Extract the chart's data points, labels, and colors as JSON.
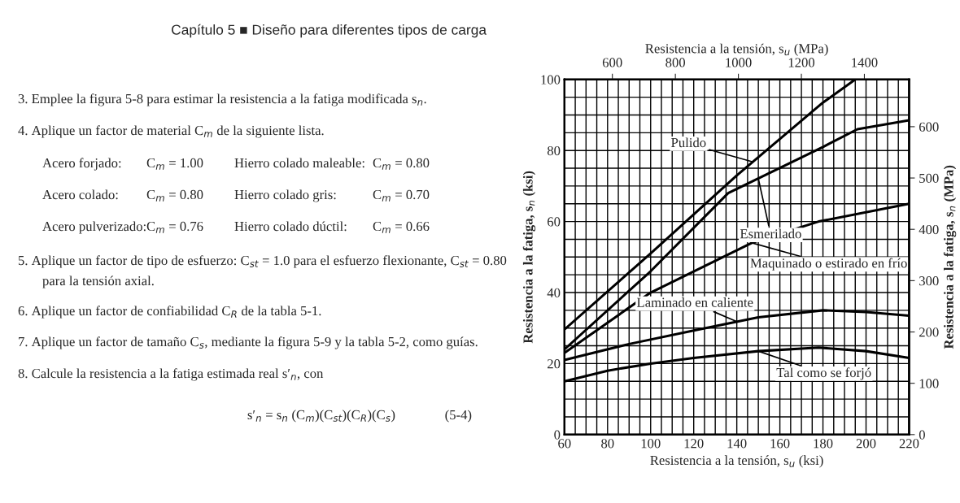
{
  "chart_data": {
    "type": "line",
    "xlabel": "Resistencia a la tensión, s$_{u}$ (ksi)",
    "x2label": "Resistencia a la tensión, s$_{u}$ (MPa)",
    "ylabel": "Resistencia a la fatiga, s$_{n}$ (ksi)",
    "y2label": "Resistencia a la fatiga, s$_{n}$ (MPa)",
    "xlim": [
      60,
      220
    ],
    "xticks": [
      60,
      {
        "value": 65,
        "label": null
      },
      {
        "value": 70,
        "label": null
      },
      {
        "value": 75,
        "label": null
      },
      80,
      {
        "value": 85,
        "label": null
      },
      {
        "value": 90,
        "label": null
      },
      {
        "value": 95,
        "label": null
      },
      100,
      {
        "value": 105,
        "label": null
      },
      {
        "value": 110,
        "label": null
      },
      {
        "value": 115,
        "label": null
      },
      120,
      {
        "value": 125,
        "label": null
      },
      {
        "value": 130,
        "label": null
      },
      {
        "value": 135,
        "label": null
      },
      140,
      {
        "value": 145,
        "label": null
      },
      {
        "value": 150,
        "label": null
      },
      {
        "value": 155,
        "label": null
      },
      160,
      {
        "value": 165,
        "label": null
      },
      {
        "value": 170,
        "label": null
      },
      {
        "value": 175,
        "label": null
      },
      180,
      {
        "value": 185,
        "label": null
      },
      {
        "value": 190,
        "label": null
      },
      {
        "value": 195,
        "label": null
      },
      200,
      {
        "value": 205,
        "label": null
      },
      {
        "value": 210,
        "label": null
      },
      {
        "value": 215,
        "label": null
      },
      220
    ],
    "ylim": [
      0,
      100
    ],
    "yticks": [
      0,
      {
        "value": 5,
        "label": null
      },
      {
        "value": 10,
        "label": null
      },
      {
        "value": 15,
        "label": null
      },
      20,
      {
        "value": 25,
        "label": null
      },
      {
        "value": 30,
        "label": null
      },
      {
        "value": 35,
        "label": null
      },
      40,
      {
        "value": 45,
        "label": null
      },
      {
        "value": 50,
        "label": null
      },
      {
        "value": 55,
        "label": null
      },
      60,
      {
        "value": 65,
        "label": null
      },
      {
        "value": 70,
        "label": null
      },
      {
        "value": 75,
        "label": null
      },
      80,
      {
        "value": 85,
        "label": null
      },
      {
        "value": 90,
        "label": null
      },
      {
        "value": 95,
        "label": null
      },
      100
    ],
    "x2lim": [
      448,
      1542
    ],
    "x2ticks": [
      600,
      800,
      1000,
      1200,
      1400
    ],
    "y2lim": [
      0,
      692
    ],
    "y2ticks": [
      0,
      100,
      200,
      300,
      400,
      500,
      600
    ],
    "grid": true,
    "marker": "none",
    "line_style": "solid",
    "series": [
      {
        "color": "#000000",
        "x": [
          60,
          100,
          140,
          180,
          195
        ],
        "values": [
          29.6,
          51,
          73,
          93.5,
          100
        ]
      },
      {
        "color": "#000000",
        "x": [
          60,
          100,
          136,
          180,
          196,
          220
        ],
        "values": [
          24,
          46,
          68,
          81,
          86,
          88.5
        ]
      },
      {
        "color": "#000000",
        "x": [
          60,
          100,
          147,
          178,
          220
        ],
        "values": [
          23,
          40,
          54,
          60,
          65
        ]
      },
      {
        "color": "#000000",
        "x": [
          60,
          90,
          120,
          150,
          180,
          200,
          220
        ],
        "values": [
          21,
          25.5,
          29.3,
          33,
          35,
          34.5,
          33.5
        ]
      },
      {
        "color": "#000000",
        "x": [
          60,
          80,
          100,
          120,
          150,
          178,
          200,
          220
        ],
        "values": [
          15,
          18,
          20,
          21.6,
          23.5,
          24.5,
          23.5,
          21.6
        ]
      }
    ],
    "annotations": [
      {
        "text": "Pulido",
        "x": 147.5,
        "y": 76.8
      },
      {
        "text": "Esmerilado",
        "x": 150,
        "y": 72.1
      },
      {
        "text": "Maquinado o estirado en frío",
        "x": 147,
        "y": 54
      },
      {
        "text": "Laminado en caliente",
        "x": 140,
        "y": 31.8
      },
      {
        "text": "Tal como se forjó",
        "x": 150,
        "y": 23.5
      },
      "Capítulo 5 ■ Diseño para diferentes tipos de carga",
      "3. Emplee la figura 5-8 para estimar la resistencia a la fatiga modificada s$_{n}$.",
      "4. Aplique un factor de material C$_{m}$ de la siguiente lista.",
      "Acero forjado:",
      "C$_{m}$ = 1.00",
      "Hierro colado maleable:",
      "C$_{m}$ = 0.80",
      "Acero colado:",
      "C$_{m}$ = 0.80",
      "Hierro colado gris:",
      "C$_{m}$ = 0.70",
      "Acero pulverizado:",
      "C$_{m}$ = 0.76",
      "Hierro colado dúctil:",
      "C$_{m}$ = 0.66",
      "5. Aplique un factor de tipo de esfuerzo: C$_{st}$ = 1.0 para el esfuerzo flexionante, C$_{st}$ = 0.80",
      "para la tensión axial.",
      "6. Aplique un factor de confiabilidad C$_{R}$ de la tabla 5-1.",
      "7. Aplique un factor de tamaño C$_{s}$, mediante la figura 5-9 y la tabla 5-2, como guías.",
      "8. Calcule la resistencia a la fatiga estimada real s′$_{n}$, con",
      "s′$_{n}$ = s$_{n}$ (C$_{m}$)(C$_{st}$)(C$_{R}$)(C$_{s}$)",
      "(5-4)"
    ]
  }
}
